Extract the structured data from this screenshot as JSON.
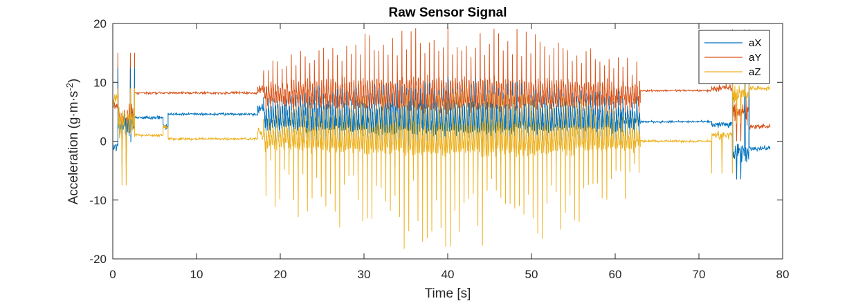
{
  "chart_data": {
    "type": "line",
    "title": "Raw Sensor Signal",
    "xlabel": "Time [s]",
    "ylabel_main": "Acceleration (g·m·s",
    "ylabel_sup": "-2",
    "ylabel_tail": ")",
    "xlim": [
      0,
      80
    ],
    "ylim": [
      -20,
      20
    ],
    "xticks": [
      0,
      10,
      20,
      30,
      40,
      50,
      60,
      70,
      80
    ],
    "yticks": [
      -20,
      -10,
      0,
      10,
      20
    ],
    "xtick_labels": [
      "0",
      "10",
      "20",
      "30",
      "40",
      "50",
      "60",
      "70",
      "80"
    ],
    "ytick_labels": [
      "-20",
      "-10",
      "0",
      "10",
      "20"
    ],
    "grid": false,
    "legend_position": "top-right",
    "duration": 78.5,
    "series": [
      {
        "name": "aX",
        "color": "#0072BD",
        "segments": [
          {
            "t": [
              0,
              0.6
            ],
            "base": -1,
            "noise": 1.2
          },
          {
            "t": [
              0.6,
              2.6
            ],
            "base": 3,
            "noise": 3.5,
            "spikes": [
              12.5,
              -3
            ]
          },
          {
            "t": [
              2.6,
              6.0
            ],
            "base": 4,
            "noise": 0.4
          },
          {
            "t": [
              6.0,
              6.6
            ],
            "base": 2.5,
            "noise": 0.8
          },
          {
            "t": [
              6.6,
              17.3
            ],
            "base": 4.6,
            "noise": 0.3
          },
          {
            "t": [
              17.3,
              18.0
            ],
            "base": 5.5,
            "noise": 1.2
          },
          {
            "t": [
              18.0,
              63.0
            ],
            "base": 4.0,
            "mode": "walk",
            "amp_hi": 11,
            "amp_lo": -6
          },
          {
            "t": [
              63.0,
              71.5
            ],
            "base": 3.3,
            "noise": 0.25
          },
          {
            "t": [
              71.5,
              74.0
            ],
            "base": 2.8,
            "noise": 0.8
          },
          {
            "t": [
              74.0,
              76.0
            ],
            "base": -2,
            "noise": 2.5,
            "spikes": [
              19,
              -6.5
            ]
          },
          {
            "t": [
              76.0,
              78.5
            ],
            "base": -1.2,
            "noise": 0.6
          }
        ]
      },
      {
        "name": "aY",
        "color": "#D95319",
        "segments": [
          {
            "t": [
              0,
              0.6
            ],
            "base": 6,
            "noise": 1.0
          },
          {
            "t": [
              0.6,
              2.6
            ],
            "base": 4,
            "noise": 3.5,
            "spikes": [
              15,
              -4
            ]
          },
          {
            "t": [
              2.6,
              17.3
            ],
            "base": 8.2,
            "noise": 0.3
          },
          {
            "t": [
              17.3,
              18.0
            ],
            "base": 9,
            "noise": 1.5
          },
          {
            "t": [
              18.0,
              63.0
            ],
            "base": 8.0,
            "mode": "walk",
            "amp_hi": 19.5,
            "amp_lo": -3
          },
          {
            "t": [
              63.0,
              71.5
            ],
            "base": 8.6,
            "noise": 0.25
          },
          {
            "t": [
              71.5,
              74.0
            ],
            "base": 9,
            "noise": 1.0
          },
          {
            "t": [
              74.0,
              76.0
            ],
            "base": 5,
            "noise": 3,
            "spikes": [
              10,
              0
            ]
          },
          {
            "t": [
              76.0,
              78.5
            ],
            "base": 2.5,
            "noise": 0.6
          }
        ]
      },
      {
        "name": "aZ",
        "color": "#EDB120",
        "segments": [
          {
            "t": [
              0,
              0.6
            ],
            "base": 7,
            "noise": 1.5
          },
          {
            "t": [
              0.6,
              2.6
            ],
            "base": 3,
            "noise": 4,
            "spikes": [
              9,
              -7.5
            ]
          },
          {
            "t": [
              2.6,
              6.0
            ],
            "base": 1.0,
            "noise": 0.4
          },
          {
            "t": [
              6.0,
              6.6
            ],
            "base": 2.5,
            "noise": 0.8
          },
          {
            "t": [
              6.6,
              17.3
            ],
            "base": 0.4,
            "noise": 0.3
          },
          {
            "t": [
              17.3,
              18.0
            ],
            "base": 1.5,
            "noise": 1.5
          },
          {
            "t": [
              18.0,
              63.0
            ],
            "base": 0.5,
            "mode": "walk",
            "amp_hi": 9,
            "amp_lo": -19
          },
          {
            "t": [
              63.0,
              71.5
            ],
            "base": 0.0,
            "noise": 0.3
          },
          {
            "t": [
              71.5,
              74.0
            ],
            "base": 1.0,
            "noise": 1.2,
            "spikes": [
              -5.5
            ]
          },
          {
            "t": [
              74.0,
              76.0
            ],
            "base": 8,
            "noise": 2.5,
            "spikes": [
              10,
              3
            ]
          },
          {
            "t": [
              76.0,
              78.5
            ],
            "base": 9.0,
            "noise": 0.6
          }
        ]
      }
    ]
  }
}
